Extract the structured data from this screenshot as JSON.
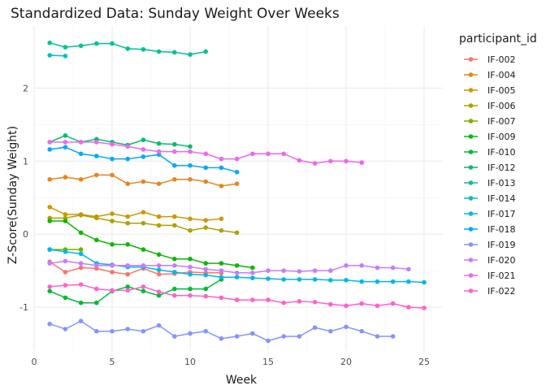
{
  "chart_data": {
    "type": "line",
    "title": "Standardized Data: Sunday Weight Over Weeks",
    "xlabel": "Week",
    "ylabel": "Z-Score(Sunday Weight)",
    "xlim": [
      0,
      26.2
    ],
    "ylim": [
      -1.6,
      2.85
    ],
    "xticks": [
      0,
      5,
      10,
      15,
      20,
      25
    ],
    "yticks": [
      -1,
      0,
      1,
      2
    ],
    "grid": true,
    "legend_title": "participant_id",
    "legend_position": "right",
    "series": [
      {
        "name": "IF-002",
        "color": "#F8766D",
        "x": [
          1,
          2,
          3,
          4,
          5,
          6,
          7,
          8,
          9,
          10,
          11,
          12
        ],
        "y": [
          -0.38,
          -0.52,
          -0.46,
          -0.47,
          -0.52,
          -0.55,
          -0.47,
          -0.55,
          -0.54,
          -0.52,
          -0.53,
          -0.53
        ]
      },
      {
        "name": "IF-004",
        "color": "#E7851E",
        "x": [
          1,
          2,
          3,
          4,
          5,
          6,
          7,
          8,
          9,
          10,
          11,
          12,
          13
        ],
        "y": [
          0.75,
          0.78,
          0.75,
          0.81,
          0.81,
          0.69,
          0.72,
          0.69,
          0.75,
          0.75,
          0.72,
          0.66,
          0.69
        ]
      },
      {
        "name": "IF-005",
        "color": "#CE9700",
        "x": [
          1,
          2,
          3,
          4,
          5,
          6,
          7,
          8,
          9,
          10,
          11,
          12
        ],
        "y": [
          0.37,
          0.27,
          0.27,
          0.24,
          0.28,
          0.24,
          0.3,
          0.24,
          0.24,
          0.21,
          0.19,
          0.21
        ]
      },
      {
        "name": "IF-006",
        "color": "#AEA200",
        "x": [
          1,
          2,
          3,
          4,
          5,
          6,
          7,
          8,
          9,
          10,
          11,
          12,
          13
        ],
        "y": [
          0.22,
          0.22,
          0.26,
          0.22,
          0.18,
          0.15,
          0.15,
          0.12,
          0.12,
          0.05,
          0.09,
          0.05,
          0.02
        ]
      },
      {
        "name": "IF-007",
        "color": "#7CAE00",
        "x": [
          1,
          2,
          3
        ],
        "y": [
          -0.21,
          -0.21,
          -0.21
        ]
      },
      {
        "name": "IF-009",
        "color": "#0CB702",
        "x": [
          1,
          2,
          3,
          4,
          5,
          6,
          7,
          8,
          9,
          10,
          11,
          12,
          13,
          14
        ],
        "y": [
          0.18,
          0.18,
          0.02,
          -0.08,
          -0.14,
          -0.14,
          -0.21,
          -0.28,
          -0.34,
          -0.34,
          -0.4,
          -0.4,
          -0.43,
          -0.46
        ]
      },
      {
        "name": "IF-010",
        "color": "#00BA38",
        "x": [
          1,
          2,
          3,
          4,
          5,
          6,
          7,
          8,
          9,
          10,
          11,
          12
        ],
        "y": [
          -0.78,
          -0.87,
          -0.94,
          -0.94,
          -0.78,
          -0.72,
          -0.78,
          -0.84,
          -0.75,
          -0.75,
          -0.75,
          -0.62
        ]
      },
      {
        "name": "IF-012",
        "color": "#00BE67",
        "x": [
          1,
          2,
          3,
          4,
          5,
          6,
          7,
          8,
          9,
          10
        ],
        "y": [
          1.26,
          1.35,
          1.26,
          1.3,
          1.26,
          1.22,
          1.29,
          1.24,
          1.23,
          1.2
        ]
      },
      {
        "name": "IF-013",
        "color": "#00C19A",
        "x": [
          1,
          2,
          3,
          4,
          5,
          6,
          7,
          8,
          9,
          10,
          11
        ],
        "y": [
          2.62,
          2.56,
          2.58,
          2.61,
          2.61,
          2.54,
          2.53,
          2.5,
          2.49,
          2.46,
          2.5
        ]
      },
      {
        "name": "IF-014",
        "color": "#00BFC4",
        "x": [
          1,
          2
        ],
        "y": [
          2.45,
          2.44
        ]
      },
      {
        "name": "IF-017",
        "color": "#00B8E7",
        "x": [
          1,
          2,
          3,
          4,
          5,
          6,
          7,
          8,
          9,
          10,
          11,
          12,
          13,
          14,
          15,
          16,
          17,
          18,
          19,
          20,
          21,
          22,
          23,
          24,
          25
        ],
        "y": [
          -0.21,
          -0.24,
          -0.27,
          -0.4,
          -0.42,
          -0.45,
          -0.45,
          -0.49,
          -0.52,
          -0.55,
          -0.56,
          -0.59,
          -0.59,
          -0.6,
          -0.61,
          -0.62,
          -0.62,
          -0.62,
          -0.63,
          -0.63,
          -0.65,
          -0.65,
          -0.65,
          -0.65,
          -0.66
        ]
      },
      {
        "name": "IF-018",
        "color": "#00A9FF",
        "x": [
          1,
          2,
          3,
          4,
          5,
          6,
          7,
          8,
          9,
          10,
          11,
          12,
          13
        ],
        "y": [
          1.16,
          1.19,
          1.1,
          1.07,
          1.03,
          1.03,
          1.06,
          1.09,
          0.94,
          0.94,
          0.91,
          0.91,
          0.85
        ]
      },
      {
        "name": "IF-019",
        "color": "#8494FF",
        "x": [
          1,
          2,
          3,
          4,
          5,
          6,
          7,
          8,
          9,
          10,
          11,
          12,
          13,
          14,
          15,
          16,
          17,
          18,
          19,
          20,
          21,
          22,
          23
        ],
        "y": [
          -1.23,
          -1.3,
          -1.19,
          -1.33,
          -1.33,
          -1.3,
          -1.33,
          -1.25,
          -1.4,
          -1.36,
          -1.33,
          -1.43,
          -1.4,
          -1.36,
          -1.46,
          -1.4,
          -1.4,
          -1.28,
          -1.33,
          -1.27,
          -1.33,
          -1.4,
          -1.4
        ]
      },
      {
        "name": "IF-020",
        "color": "#C77CFF",
        "x": [
          1,
          2,
          3,
          4,
          5,
          6,
          7,
          8,
          9,
          10,
          11,
          12,
          13,
          14,
          15,
          16,
          17,
          18,
          19,
          20,
          21,
          22,
          23,
          24
        ],
        "y": [
          -0.4,
          -0.37,
          -0.4,
          -0.43,
          -0.43,
          -0.43,
          -0.43,
          -0.43,
          -0.43,
          -0.45,
          -0.48,
          -0.5,
          -0.53,
          -0.53,
          -0.5,
          -0.5,
          -0.51,
          -0.5,
          -0.5,
          -0.43,
          -0.43,
          -0.46,
          -0.46,
          -0.48
        ]
      },
      {
        "name": "IF-021",
        "color": "#ED68ED",
        "x": [
          1,
          2,
          3,
          4,
          5,
          6,
          7,
          8,
          9,
          10,
          11,
          12,
          13,
          14,
          15,
          16,
          17,
          18,
          19,
          20,
          21
        ],
        "y": [
          1.26,
          1.26,
          1.26,
          1.26,
          1.23,
          1.2,
          1.16,
          1.13,
          1.13,
          1.13,
          1.1,
          1.03,
          1.03,
          1.1,
          1.1,
          1.1,
          1.01,
          0.97,
          1.0,
          1.0,
          0.98
        ]
      },
      {
        "name": "IF-022",
        "color": "#FF61CC",
        "x": [
          1,
          2,
          3,
          4,
          5,
          6,
          7,
          8,
          9,
          10,
          11,
          12,
          13,
          14,
          15,
          16,
          17,
          18,
          19,
          20,
          21,
          22,
          23,
          24,
          25
        ],
        "y": [
          -0.72,
          -0.7,
          -0.69,
          -0.75,
          -0.77,
          -0.77,
          -0.72,
          -0.79,
          -0.84,
          -0.84,
          -0.85,
          -0.87,
          -0.9,
          -0.9,
          -0.9,
          -0.94,
          -0.92,
          -0.93,
          -0.96,
          -0.98,
          -0.95,
          -0.98,
          -0.95,
          -1.0,
          -1.01
        ]
      }
    ]
  }
}
